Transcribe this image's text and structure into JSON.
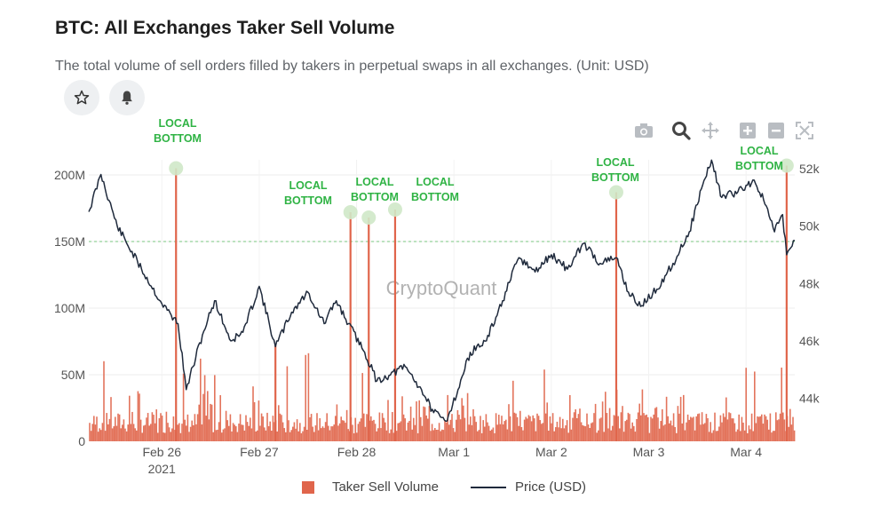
{
  "header": {
    "title": "BTC: All Exchanges Taker Sell Volume",
    "subtitle": "The total volume of sell orders filled by takers in perpetual swaps in all exchanges. (Unit: USD)"
  },
  "buttons": {
    "favorite_icon": "star-icon",
    "alert_icon": "bell-icon"
  },
  "toolbar": {
    "icons": [
      "camera-icon",
      "zoom-icon",
      "pan-icon",
      "zoom-in-icon",
      "zoom-out-icon",
      "autoscale-icon"
    ]
  },
  "watermark": "CryptoQuant",
  "colors": {
    "volume": "#e0654b",
    "price": "#1f2a3c",
    "annotation": "#2fb344",
    "marker": "#cfe8c8"
  },
  "chart_data": {
    "type": "bar+line",
    "x_ticks": [
      "Feb 26",
      "Feb 27",
      "Feb 28",
      "Mar 1",
      "Mar 2",
      "Mar 3",
      "Mar 4"
    ],
    "x_tick_year": "2021",
    "xlim": [
      "2021-02-25 06:00",
      "2021-03-04 12:00"
    ],
    "y_left": {
      "ticks": [
        "0",
        "50M",
        "100M",
        "150M",
        "200M"
      ],
      "tick_values": [
        0,
        50000000,
        100000000,
        150000000,
        200000000
      ],
      "range": [
        0,
        200000000
      ]
    },
    "y_right": {
      "ticks": [
        "44k",
        "46k",
        "48k",
        "50k",
        "52k"
      ],
      "tick_values": [
        44000,
        46000,
        48000,
        50000,
        52000
      ],
      "range": [
        42500,
        52000
      ]
    },
    "reference_line_y_left": 150000000,
    "series": [
      {
        "name": "Taker Sell Volume",
        "kind": "bar",
        "axis": "left",
        "spikes": [
          {
            "x": "2021-02-26 03:30",
            "value": 205000000
          },
          {
            "x": "2021-02-27 04:00",
            "value": 72000000
          },
          {
            "x": "2021-02-27 22:30",
            "value": 172000000
          },
          {
            "x": "2021-02-28 03:00",
            "value": 168000000
          },
          {
            "x": "2021-02-28 09:30",
            "value": 174000000
          },
          {
            "x": "2021-03-02 16:00",
            "value": 187000000
          },
          {
            "x": "2021-03-04 10:00",
            "value": 207000000
          }
        ]
      },
      {
        "name": "Price (USD)",
        "kind": "line",
        "axis": "right",
        "points": [
          [
            "2021-02-25 06:00",
            50500
          ],
          [
            "2021-02-25 09:00",
            51800
          ],
          [
            "2021-02-25 13:00",
            50000
          ],
          [
            "2021-02-25 19:00",
            48500
          ],
          [
            "2021-02-26 00:00",
            47300
          ],
          [
            "2021-02-26 04:00",
            46600
          ],
          [
            "2021-02-26 06:00",
            44300
          ],
          [
            "2021-02-26 10:00",
            46200
          ],
          [
            "2021-02-26 13:00",
            47400
          ],
          [
            "2021-02-26 17:00",
            46000
          ],
          [
            "2021-02-26 20:00",
            46300
          ],
          [
            "2021-02-27 00:00",
            47900
          ],
          [
            "2021-02-27 04:00",
            45800
          ],
          [
            "2021-02-27 08:00",
            47000
          ],
          [
            "2021-02-27 12:00",
            47700
          ],
          [
            "2021-02-27 16:00",
            46600
          ],
          [
            "2021-02-27 19:00",
            47400
          ],
          [
            "2021-02-27 22:00",
            46600
          ],
          [
            "2021-02-28 02:00",
            45600
          ],
          [
            "2021-02-28 05:00",
            44600
          ],
          [
            "2021-02-28 08:00",
            44800
          ],
          [
            "2021-02-28 12:00",
            45100
          ],
          [
            "2021-02-28 16:00",
            44300
          ],
          [
            "2021-02-28 19:00",
            43500
          ],
          [
            "2021-02-28 22:00",
            43200
          ],
          [
            "2021-03-01 01:00",
            44300
          ],
          [
            "2021-03-01 04:00",
            45600
          ],
          [
            "2021-03-01 08:00",
            46000
          ],
          [
            "2021-03-01 12:00",
            47400
          ],
          [
            "2021-03-01 16:00",
            48900
          ],
          [
            "2021-03-01 20:00",
            48400
          ],
          [
            "2021-03-02 00:00",
            49000
          ],
          [
            "2021-03-02 04:00",
            48500
          ],
          [
            "2021-03-02 08:00",
            49400
          ],
          [
            "2021-03-02 12:00",
            48700
          ],
          [
            "2021-03-02 16:00",
            48900
          ],
          [
            "2021-03-02 19:00",
            47700
          ],
          [
            "2021-03-02 22:00",
            47200
          ],
          [
            "2021-03-03 02:00",
            47800
          ],
          [
            "2021-03-03 06:00",
            48700
          ],
          [
            "2021-03-03 10:00",
            49800
          ],
          [
            "2021-03-03 13:00",
            51300
          ],
          [
            "2021-03-03 15:30",
            52300
          ],
          [
            "2021-03-03 18:00",
            51000
          ],
          [
            "2021-03-03 22:00",
            51200
          ],
          [
            "2021-03-04 02:00",
            51600
          ],
          [
            "2021-03-04 05:00",
            50700
          ],
          [
            "2021-03-04 07:00",
            49800
          ],
          [
            "2021-03-04 09:00",
            50400
          ],
          [
            "2021-03-04 10:00",
            49000
          ],
          [
            "2021-03-04 12:00",
            49500
          ]
        ]
      }
    ],
    "annotations": [
      {
        "text": "LOCAL\nBOTTOM",
        "x": "2021-02-26 03:30",
        "value": 205000000
      },
      {
        "text": "LOCAL\nBOTTOM",
        "x": "2021-02-27 22:30",
        "value": 172000000
      },
      {
        "text": "LOCAL\nBOTTOM",
        "x": "2021-02-28 03:00",
        "value": 168000000
      },
      {
        "text": "LOCAL\nBOTTOM",
        "x": "2021-02-28 09:30",
        "value": 174000000
      },
      {
        "text": "LOCAL\nBOTTOM",
        "x": "2021-03-02 16:00",
        "value": 187000000
      },
      {
        "text": "LOCAL\nBOTTOM",
        "x": "2021-03-04 10:00",
        "value": 207000000
      }
    ],
    "legend": [
      "Taker Sell Volume",
      "Price (USD)"
    ],
    "legend_position": "bottom-center",
    "grid": true
  }
}
